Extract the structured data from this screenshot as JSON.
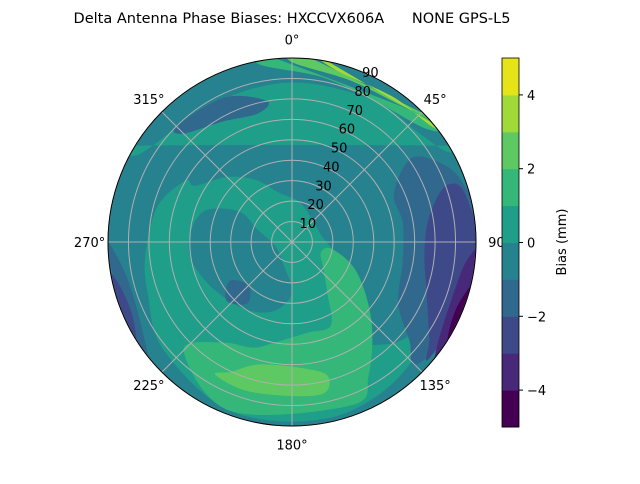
{
  "chart_data": {
    "type": "heatmap",
    "subtype": "polar-contourf",
    "title": "Delta Antenna Phase Biases: HXCCVX606A      NONE GPS-L5",
    "angle_ticks": [
      "0°",
      "45°",
      "90",
      "135°",
      "180°",
      "225°",
      "270°",
      "315°"
    ],
    "angle_tick_values": [
      0,
      45,
      90,
      135,
      180,
      225,
      270,
      315
    ],
    "radial_ticks": [
      "10",
      "20",
      "30",
      "40",
      "50",
      "60",
      "70",
      "80",
      "90"
    ],
    "radial_tick_values": [
      10,
      20,
      30,
      40,
      50,
      60,
      70,
      80,
      90
    ],
    "rlim": [
      0,
      90
    ],
    "grid": true,
    "colormap": "viridis",
    "colorbar": {
      "label": "Bias (mm)",
      "levels": [
        -5,
        -4,
        -3,
        -2,
        -1,
        0,
        1,
        2,
        3,
        4,
        5
      ],
      "ticks": [
        "−4",
        "−2",
        "0",
        "2",
        "4"
      ],
      "tick_values": [
        -4,
        -2,
        0,
        2,
        4
      ],
      "colors": [
        "#440154",
        "#482878",
        "#3e4989",
        "#31688e",
        "#26828e",
        "#1f9e89",
        "#35b779",
        "#5ec962",
        "#a0da39",
        "#e5e419"
      ]
    },
    "base_level": [
      -1,
      0
    ],
    "regions": [
      {
        "level": [
          0,
          1
        ],
        "points": [
          [
            300,
            55
          ],
          [
            315,
            45
          ],
          [
            330,
            35
          ],
          [
            345,
            25
          ],
          [
            10,
            20
          ],
          [
            40,
            15
          ],
          [
            80,
            15
          ],
          [
            110,
            25
          ],
          [
            130,
            45
          ],
          [
            150,
            55
          ],
          [
            135,
            70
          ],
          [
            120,
            80
          ],
          [
            145,
            85
          ],
          [
            170,
            88
          ],
          [
            200,
            88
          ],
          [
            230,
            82
          ],
          [
            250,
            75
          ],
          [
            265,
            72
          ],
          [
            285,
            68
          ],
          [
            300,
            60
          ]
        ]
      },
      {
        "level": [
          -1,
          0
        ],
        "points": [
          [
            260,
            50
          ],
          [
            240,
            45
          ],
          [
            215,
            40
          ],
          [
            195,
            35
          ],
          [
            180,
            25
          ],
          [
            200,
            12
          ],
          [
            240,
            8
          ],
          [
            270,
            10
          ],
          [
            290,
            18
          ],
          [
            300,
            30
          ],
          [
            290,
            45
          ],
          [
            275,
            50
          ]
        ]
      },
      {
        "level": [
          0,
          1
        ],
        "points": [
          [
            300,
            86
          ],
          [
            330,
            78
          ],
          [
            0,
            78
          ],
          [
            30,
            80
          ],
          [
            50,
            82
          ],
          [
            60,
            88
          ],
          [
            60,
            90
          ],
          [
            300,
            90
          ]
        ]
      },
      {
        "level": [
          1,
          2
        ],
        "points": [
          [
            200,
            55
          ],
          [
            190,
            50
          ],
          [
            170,
            45
          ],
          [
            155,
            45
          ],
          [
            145,
            30
          ],
          [
            130,
            20
          ],
          [
            110,
            15
          ],
          [
            100,
            20
          ],
          [
            115,
            35
          ],
          [
            135,
            55
          ],
          [
            150,
            75
          ],
          [
            160,
            85
          ],
          [
            200,
            88
          ],
          [
            225,
            75
          ],
          [
            215,
            60
          ]
        ]
      },
      {
        "level": [
          1,
          2
        ],
        "points": [
          [
            350,
            88
          ],
          [
            10,
            82
          ],
          [
            30,
            80
          ],
          [
            50,
            86
          ],
          [
            52,
            90
          ],
          [
            350,
            90
          ]
        ]
      },
      {
        "level": [
          2,
          3
        ],
        "points": [
          [
            205,
            70
          ],
          [
            195,
            62
          ],
          [
            175,
            62
          ],
          [
            165,
            68
          ],
          [
            170,
            76
          ],
          [
            195,
            76
          ],
          [
            210,
            75
          ]
        ]
      },
      {
        "level": [
          2,
          3
        ],
        "points": [
          [
            0,
            88
          ],
          [
            20,
            84
          ],
          [
            40,
            86
          ],
          [
            52,
            90
          ],
          [
            0,
            90
          ]
        ]
      },
      {
        "level": [
          3,
          4
        ],
        "points": [
          [
            5,
            90
          ],
          [
            15,
            86.5
          ],
          [
            35,
            86.5
          ],
          [
            50,
            88.5
          ],
          [
            56,
            90
          ]
        ]
      },
      {
        "level": [
          -2,
          -1
        ],
        "points": [
          [
            55,
            70
          ],
          [
            65,
            55
          ],
          [
            80,
            55
          ],
          [
            100,
            55
          ],
          [
            120,
            60
          ],
          [
            130,
            75
          ],
          [
            135,
            85
          ],
          [
            120,
            88
          ],
          [
            90,
            90
          ],
          [
            70,
            88
          ],
          [
            60,
            80
          ]
        ]
      },
      {
        "level": [
          -2,
          -1
        ],
        "points": [
          [
            315,
            75
          ],
          [
            330,
            68
          ],
          [
            345,
            65
          ],
          [
            350,
            70
          ],
          [
            335,
            78
          ],
          [
            315,
            80
          ]
        ]
      },
      {
        "level": [
          -2,
          -1
        ],
        "points": [
          [
            225,
            30
          ],
          [
            216,
            37
          ],
          [
            228,
            43
          ],
          [
            238,
            36
          ]
        ]
      },
      {
        "level": [
          -2,
          -1
        ],
        "points": [
          [
            228,
            90
          ],
          [
            245,
            83
          ],
          [
            262,
            84
          ],
          [
            272,
            90
          ]
        ]
      },
      {
        "level": [
          -3,
          -2
        ],
        "points": [
          [
            70,
            80
          ],
          [
            80,
            68
          ],
          [
            95,
            65
          ],
          [
            110,
            70
          ],
          [
            125,
            82
          ],
          [
            130,
            88
          ],
          [
            100,
            90
          ],
          [
            75,
            88
          ]
        ]
      },
      {
        "level": [
          -3,
          -2
        ],
        "points": [
          [
            235,
            90
          ],
          [
            245,
            86
          ],
          [
            258,
            88
          ],
          [
            262,
            90
          ]
        ]
      },
      {
        "level": [
          -4,
          -3
        ],
        "points": [
          [
            92,
            90
          ],
          [
            96,
            86
          ],
          [
            110,
            83
          ],
          [
            125,
            87
          ],
          [
            132,
            90
          ]
        ]
      },
      {
        "level": [
          -5,
          -4
        ],
        "points": [
          [
            100,
            90
          ],
          [
            110,
            87
          ],
          [
            120,
            88.5
          ],
          [
            126,
            90
          ]
        ]
      }
    ]
  }
}
